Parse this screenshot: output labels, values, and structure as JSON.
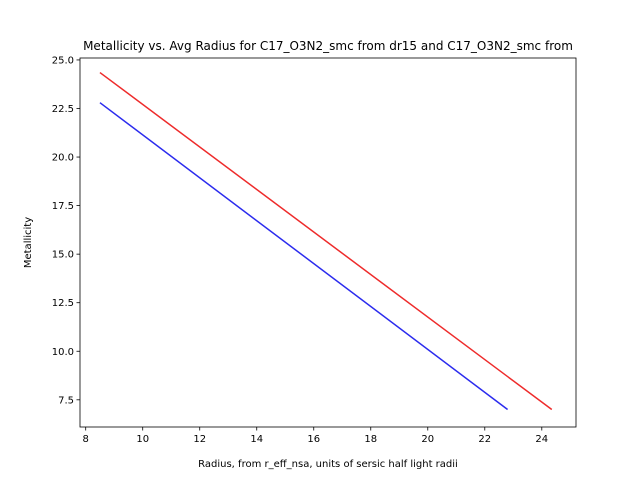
{
  "chart_data": {
    "type": "line",
    "title": "Metallicity vs. Avg Radius for C17_O3N2_smc from dr15 and C17_O3N2_smc from",
    "xlabel": "Radius, from r_eff_nsa, units of sersic half light radii",
    "ylabel": "Metallicity",
    "xlim": [
      7.8,
      25.2
    ],
    "ylim": [
      6.1,
      25.1
    ],
    "xticks": [
      8,
      10,
      12,
      14,
      16,
      18,
      20,
      22,
      24
    ],
    "yticks": [
      7.5,
      10.0,
      12.5,
      15.0,
      17.5,
      20.0,
      22.5,
      25.0
    ],
    "grid": false,
    "series": [
      {
        "color": "#ee2b2b",
        "x": [
          8.5,
          24.35
        ],
        "y": [
          24.35,
          7.0
        ]
      },
      {
        "color": "#2b2bee",
        "x": [
          8.5,
          22.8
        ],
        "y": [
          22.8,
          7.0
        ]
      }
    ]
  }
}
